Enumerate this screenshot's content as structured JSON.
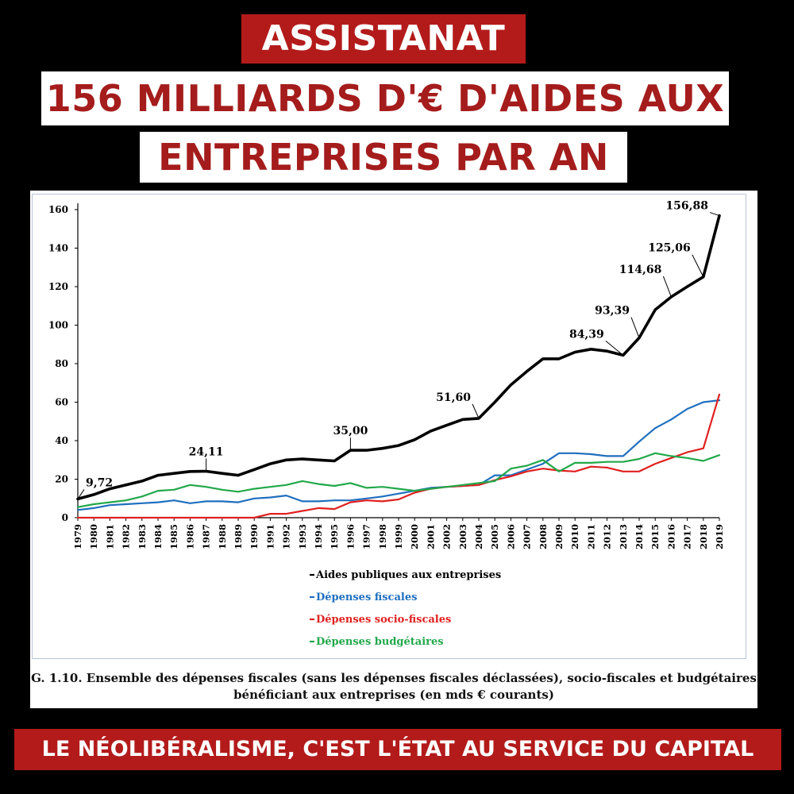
{
  "header": {
    "title": "ASSISTANAT",
    "headline_line1": "156 MILLIARDS D'€ D'AIDES AUX",
    "headline_line2": "ENTREPRISES PAR AN"
  },
  "footer": {
    "slogan": "LE NÉOLIBÉRALISME, C'EST L'ÉTAT AU SERVICE DU CAPITAL"
  },
  "caption": {
    "line1": "G. 1.10. Ensemble des dépenses fiscales (sans les dépenses fiscales déclassées), socio-fiscales et budgétaires",
    "line2": "bénéficiant aux entreprises (en mds € courants)"
  },
  "colors": {
    "banner_red": "#b31b1b",
    "headline_red": "#a51c1c",
    "aides": "#000000",
    "fiscales": "#1f6fbf",
    "socio_fiscales": "#e02020",
    "budgetaires": "#22a84a"
  },
  "chart_data": {
    "type": "line",
    "x": [
      1979,
      1980,
      1981,
      1982,
      1983,
      1984,
      1985,
      1986,
      1987,
      1988,
      1989,
      1990,
      1991,
      1992,
      1993,
      1994,
      1995,
      1996,
      1997,
      1998,
      1999,
      2000,
      2001,
      2002,
      2003,
      2004,
      2005,
      2006,
      2007,
      2008,
      2009,
      2010,
      2011,
      2012,
      2013,
      2014,
      2015,
      2016,
      2017,
      2018,
      2019
    ],
    "ylim": [
      0,
      160
    ],
    "yticks": [
      0,
      20,
      40,
      60,
      80,
      100,
      120,
      140,
      160
    ],
    "grid": false,
    "legend_position": "bottom-center",
    "series": [
      {
        "name": "Aides publiques aux entreprises",
        "color": "#000000",
        "values": [
          9.72,
          12,
          15,
          17,
          19,
          22,
          23,
          24,
          24.11,
          23,
          22,
          25,
          28,
          30,
          30.5,
          30,
          29.5,
          35,
          35,
          36,
          37.5,
          40.5,
          45,
          48,
          51,
          51.6,
          60,
          69,
          76,
          82.5,
          82.5,
          86,
          87.5,
          86.5,
          84.39,
          93.39,
          108,
          114.68,
          120,
          125.06,
          156.88
        ]
      },
      {
        "name": "Dépenses fiscales",
        "color": "#1f6fbf",
        "values": [
          4,
          5,
          6.5,
          7,
          7.5,
          8,
          9,
          7.5,
          8.5,
          8.5,
          8,
          10,
          10.5,
          11.5,
          8.5,
          8.5,
          9,
          9,
          10,
          11,
          12.5,
          14,
          15.5,
          16,
          16.5,
          17,
          22,
          22,
          25,
          28,
          33.5,
          33.5,
          33,
          32,
          32,
          39.5,
          46.5,
          51,
          56.5,
          60,
          61
        ]
      },
      {
        "name": "Dépenses socio-fiscales",
        "color": "#e02020",
        "values": [
          0,
          0,
          0,
          0,
          0,
          0,
          0,
          0,
          0,
          0,
          0,
          0,
          2,
          2,
          3.5,
          5,
          4.5,
          8,
          9,
          8.5,
          9.5,
          13,
          15,
          16,
          16.5,
          17,
          19.5,
          21.5,
          24,
          25.5,
          24.5,
          24,
          26.5,
          26,
          24,
          24,
          28,
          31,
          34,
          36,
          64
        ]
      },
      {
        "name": "Dépenses budgétaires",
        "color": "#22a84a",
        "values": [
          5.5,
          7,
          8,
          9,
          11,
          14,
          14.5,
          17,
          16,
          14.5,
          13.5,
          15,
          16,
          17,
          19,
          17.5,
          16.5,
          18,
          15.5,
          16,
          15,
          14,
          15,
          16,
          17,
          18,
          19,
          25.5,
          27,
          30,
          24,
          28.5,
          28.5,
          29,
          29,
          30.5,
          33.5,
          32,
          31,
          29.5,
          32.5
        ]
      }
    ],
    "annotations": [
      {
        "x": 1979,
        "label": "9,72"
      },
      {
        "x": 1987,
        "label": "24,11"
      },
      {
        "x": 1996,
        "label": "35,00"
      },
      {
        "x": 2004,
        "label": "51,60"
      },
      {
        "x": 2013,
        "label": "84,39"
      },
      {
        "x": 2014,
        "label": "93,39"
      },
      {
        "x": 2016,
        "label": "114,68"
      },
      {
        "x": 2018,
        "label": "125,06"
      },
      {
        "x": 2019,
        "label": "156,88"
      }
    ]
  }
}
